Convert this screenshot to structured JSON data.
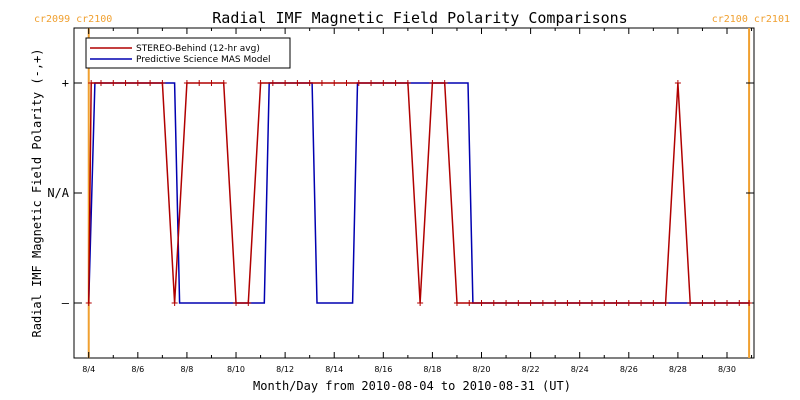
{
  "chart_data": {
    "type": "line",
    "title": "Radial IMF Magnetic Field Polarity Comparisons",
    "xlabel": "Month/Day from 2010-08-04 to 2010-08-31 (UT)",
    "ylabel": "Radial IMF Magnetic Field Polarity (-,+)",
    "xlim": [
      -0.6,
      27.1
    ],
    "ylim": [
      -1.5,
      1.5
    ],
    "x_ticks": [
      {
        "value": 0,
        "label": "8/4"
      },
      {
        "value": 2,
        "label": "8/6"
      },
      {
        "value": 4,
        "label": "8/8"
      },
      {
        "value": 6,
        "label": "8/10"
      },
      {
        "value": 8,
        "label": "8/12"
      },
      {
        "value": 10,
        "label": "8/14"
      },
      {
        "value": 12,
        "label": "8/16"
      },
      {
        "value": 14,
        "label": "8/18"
      },
      {
        "value": 16,
        "label": "8/20"
      },
      {
        "value": 18,
        "label": "8/22"
      },
      {
        "value": 20,
        "label": "8/24"
      },
      {
        "value": 22,
        "label": "8/26"
      },
      {
        "value": 24,
        "label": "8/28"
      },
      {
        "value": 26,
        "label": "8/30"
      }
    ],
    "y_ticks": [
      {
        "value": 1,
        "label": "+"
      },
      {
        "value": 0,
        "label": "N/A"
      },
      {
        "value": -1,
        "label": "–"
      }
    ],
    "legend_position": "top-left",
    "vertical_markers": [
      {
        "x": 0,
        "labels": [
          "cr2099",
          "cr2100"
        ],
        "color": "#f0a030"
      },
      {
        "x": 26.9,
        "labels": [
          "cr2100",
          "cr2101"
        ],
        "color": "#f0a030"
      }
    ],
    "series": [
      {
        "name": "STEREO-Behind (12-hr avg)",
        "color": "#b00000",
        "markers": true,
        "x": [
          0,
          0.1,
          0.5,
          1.0,
          1.5,
          2.0,
          2.5,
          3.0,
          3.5,
          4.0,
          4.5,
          5.0,
          5.5,
          6.0,
          6.5,
          7.0,
          7.5,
          8.0,
          8.5,
          9.0,
          9.5,
          10.0,
          10.5,
          11.0,
          11.5,
          12.0,
          12.5,
          13.0,
          13.5,
          14.0,
          14.5,
          15.0,
          15.5,
          16.0,
          16.5,
          17.0,
          17.5,
          18.0,
          18.5,
          19.0,
          19.5,
          20.0,
          20.5,
          21.0,
          21.5,
          22.0,
          22.5,
          23.0,
          23.5,
          24.0,
          24.5,
          25.0,
          25.5,
          26.0,
          26.5,
          26.9
        ],
        "y": [
          -1,
          1,
          1,
          1,
          1,
          1,
          1,
          1,
          -1,
          1,
          1,
          1,
          1,
          -1,
          -1,
          1,
          1,
          1,
          1,
          1,
          1,
          1,
          1,
          1,
          1,
          1,
          1,
          1,
          -1,
          1,
          1,
          -1,
          -1,
          -1,
          -1,
          -1,
          -1,
          -1,
          -1,
          -1,
          -1,
          -1,
          -1,
          -1,
          -1,
          -1,
          -1,
          -1,
          -1,
          1,
          -1,
          -1,
          -1,
          -1,
          -1,
          -1
        ]
      },
      {
        "name": "Predictive Science MAS Model",
        "color": "#0000b0",
        "markers": false,
        "x": [
          0,
          0.25,
          3.5,
          3.7,
          7.15,
          7.35,
          9.1,
          9.3,
          10.75,
          10.95,
          15.45,
          15.65,
          26.9
        ],
        "y": [
          -1,
          1,
          1,
          -1,
          -1,
          1,
          1,
          -1,
          -1,
          1,
          1,
          -1,
          -1
        ]
      }
    ]
  }
}
